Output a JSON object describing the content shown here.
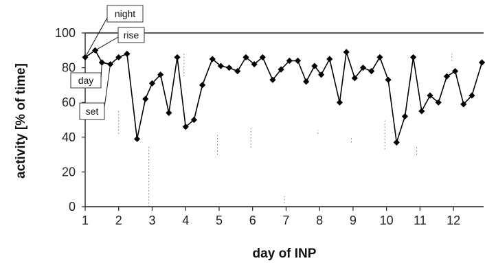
{
  "chart_data": {
    "type": "line",
    "xlabel": "day of INP",
    "ylabel": "activity [% of time]",
    "xlim": [
      1,
      12.9
    ],
    "ylim": [
      0,
      100
    ],
    "x_ticks": [
      "1",
      "2",
      "3",
      "4",
      "5",
      "6",
      "7",
      "8",
      "9",
      "10",
      "11",
      "12"
    ],
    "y_ticks": [
      "0",
      "20",
      "40",
      "60",
      "80",
      "100"
    ],
    "grid": "horizontal line at 100 only",
    "annotations": [
      {
        "label": "night",
        "x": 1.0,
        "y": 86
      },
      {
        "label": "rise",
        "x": 1.3,
        "y": 90
      },
      {
        "label": "day",
        "x": 1.5,
        "y": 83
      },
      {
        "label": "set",
        "x": 1.75,
        "y": 82
      }
    ],
    "series": [
      {
        "marker": "diamond",
        "color": "#000000",
        "points": [
          [
            1.0,
            86
          ],
          [
            1.3,
            90
          ],
          [
            1.5,
            83
          ],
          [
            1.75,
            82
          ],
          [
            2.0,
            86
          ],
          [
            2.25,
            88
          ],
          [
            2.55,
            39
          ],
          [
            2.8,
            62
          ],
          [
            3.0,
            71
          ],
          [
            3.25,
            76
          ],
          [
            3.5,
            54
          ],
          [
            3.75,
            86
          ],
          [
            4.0,
            46
          ],
          [
            4.25,
            50
          ],
          [
            4.5,
            70
          ],
          [
            4.8,
            85
          ],
          [
            5.05,
            81
          ],
          [
            5.3,
            80
          ],
          [
            5.55,
            78
          ],
          [
            5.8,
            86
          ],
          [
            6.05,
            82
          ],
          [
            6.3,
            86
          ],
          [
            6.6,
            73
          ],
          [
            6.85,
            79
          ],
          [
            7.1,
            84
          ],
          [
            7.35,
            84
          ],
          [
            7.6,
            72
          ],
          [
            7.85,
            81
          ],
          [
            8.05,
            76
          ],
          [
            8.3,
            85
          ],
          [
            8.6,
            60
          ],
          [
            8.8,
            89
          ],
          [
            9.05,
            74
          ],
          [
            9.3,
            80
          ],
          [
            9.55,
            78
          ],
          [
            9.8,
            86
          ],
          [
            10.05,
            73
          ],
          [
            10.3,
            37
          ],
          [
            10.55,
            52
          ],
          [
            10.8,
            86
          ],
          [
            11.05,
            55
          ],
          [
            11.3,
            64
          ],
          [
            11.55,
            60
          ],
          [
            11.8,
            75
          ],
          [
            12.05,
            78
          ],
          [
            12.3,
            59
          ],
          [
            12.55,
            64
          ],
          [
            12.85,
            83
          ]
        ]
      }
    ],
    "faint_marks": [
      [
        2.0,
        42,
        55
      ],
      [
        2.9,
        0,
        35
      ],
      [
        3.95,
        75,
        88
      ],
      [
        4.95,
        30,
        42
      ],
      [
        5.95,
        34,
        46
      ],
      [
        6.95,
        2,
        6
      ],
      [
        7.95,
        42,
        44
      ],
      [
        8.95,
        37,
        40
      ],
      [
        9.95,
        33,
        50
      ],
      [
        10.9,
        30,
        35
      ],
      [
        11.95,
        84,
        88
      ]
    ]
  }
}
